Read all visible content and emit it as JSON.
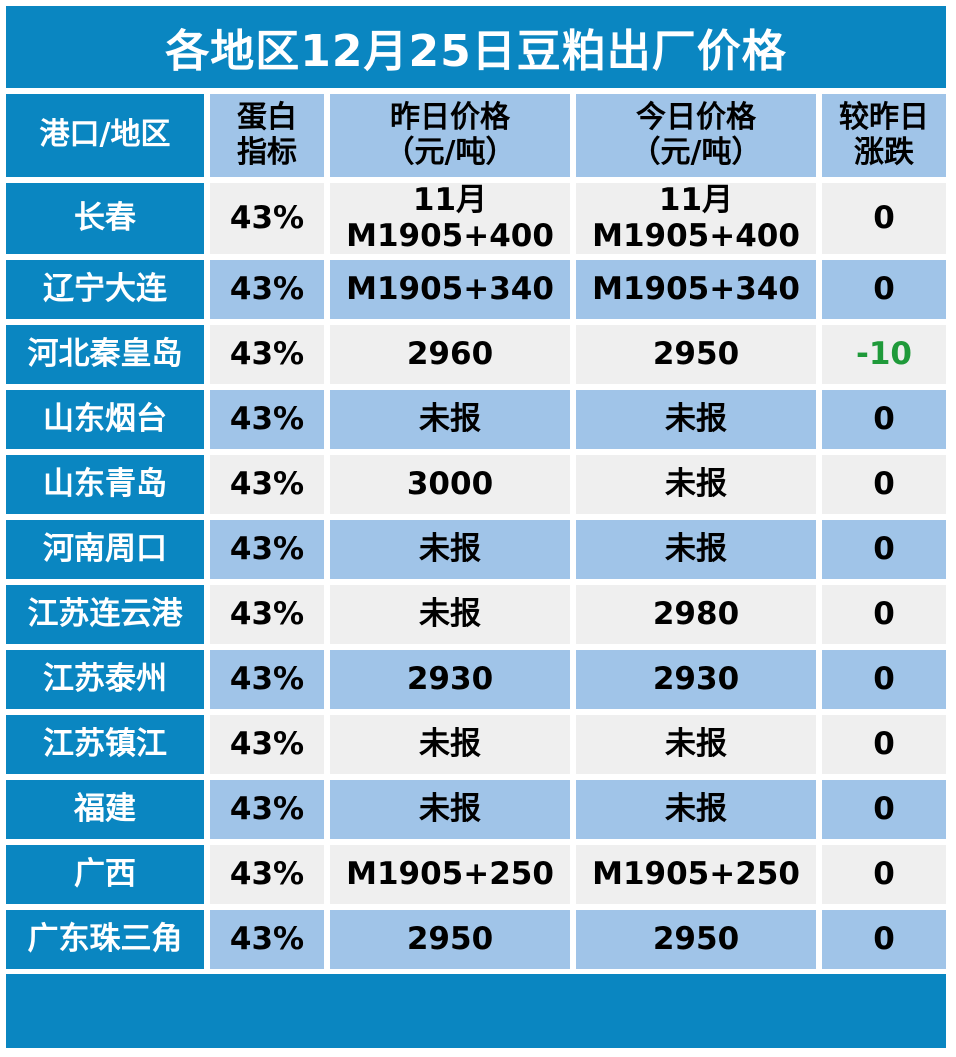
{
  "title": "各地区12月25日豆粕出厂价格",
  "header": {
    "region": "港口/地区",
    "protein": [
      "蛋白",
      "指标"
    ],
    "yesterday": [
      "昨日价格",
      "（元/吨）"
    ],
    "today": [
      "今日价格",
      "（元/吨）"
    ],
    "change": [
      "较昨日",
      "涨跌"
    ]
  },
  "rows": [
    {
      "region": "长春",
      "protein": "43%",
      "yesterday": [
        "11月",
        "M1905+400"
      ],
      "today": [
        "11月",
        "M1905+400"
      ],
      "change": "0"
    },
    {
      "region": "辽宁大连",
      "protein": "43%",
      "yesterday": [
        "M1905+340"
      ],
      "today": [
        "M1905+340"
      ],
      "change": "0"
    },
    {
      "region": "河北秦皇岛",
      "protein": "43%",
      "yesterday": [
        "2960"
      ],
      "today": [
        "2950"
      ],
      "change": "-10"
    },
    {
      "region": "山东烟台",
      "protein": "43%",
      "yesterday": [
        "未报"
      ],
      "today": [
        "未报"
      ],
      "change": "0"
    },
    {
      "region": "山东青岛",
      "protein": "43%",
      "yesterday": [
        "3000"
      ],
      "today": [
        "未报"
      ],
      "change": "0"
    },
    {
      "region": "河南周口",
      "protein": "43%",
      "yesterday": [
        "未报"
      ],
      "today": [
        "未报"
      ],
      "change": "0"
    },
    {
      "region": "江苏连云港",
      "protein": "43%",
      "yesterday": [
        "未报"
      ],
      "today": [
        "2980"
      ],
      "change": "0"
    },
    {
      "region": "江苏泰州",
      "protein": "43%",
      "yesterday": [
        "2930"
      ],
      "today": [
        "2930"
      ],
      "change": "0"
    },
    {
      "region": "江苏镇江",
      "protein": "43%",
      "yesterday": [
        "未报"
      ],
      "today": [
        "未报"
      ],
      "change": "0"
    },
    {
      "region": "福建",
      "protein": "43%",
      "yesterday": [
        "未报"
      ],
      "today": [
        "未报"
      ],
      "change": "0"
    },
    {
      "region": "广西",
      "protein": "43%",
      "yesterday": [
        "M1905+250"
      ],
      "today": [
        "M1905+250"
      ],
      "change": "0"
    },
    {
      "region": "广东珠三角",
      "protein": "43%",
      "yesterday": [
        "2950"
      ],
      "today": [
        "2950"
      ],
      "change": "0"
    }
  ],
  "colors": {
    "header_blue": "#0a86c1",
    "light_blue": "#a0c4e8",
    "light_gray": "#efefef",
    "negative": "#1f9a3a"
  }
}
